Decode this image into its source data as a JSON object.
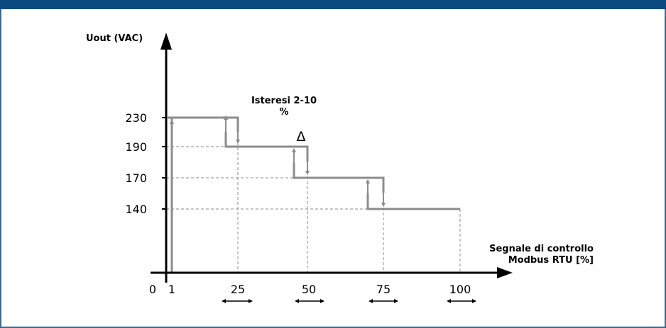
{
  "labels": {
    "y_axis_title": "Uout (VAC)",
    "x_axis_title_line1": "Segnale di controllo",
    "x_axis_title_line2": "Modbus RTU [%]",
    "hysteresis_line1": "Isteresi 2-10",
    "hysteresis_line2": "%",
    "delta_symbol": "Δ",
    "origin": "0"
  },
  "y_ticks": [
    "230",
    "190",
    "170",
    "140"
  ],
  "x_ticks": [
    "1",
    "25",
    "50",
    "75",
    "100"
  ],
  "colors": {
    "header": "#0b4a7e",
    "frame": "#3a6a8f",
    "step_line": "#8c8c8c",
    "axis": "#000000"
  }
}
